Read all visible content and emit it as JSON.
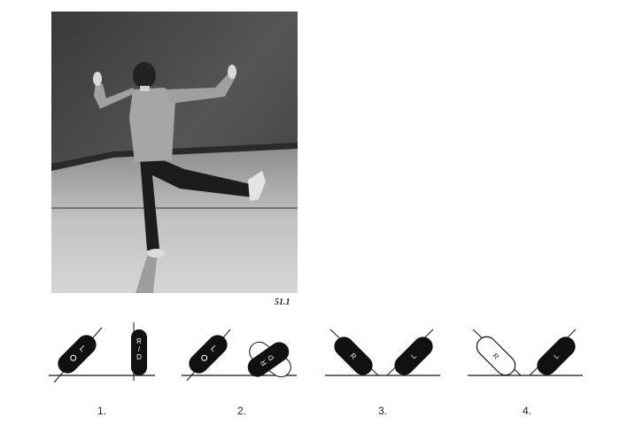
{
  "figure": {
    "label": "51.1"
  },
  "foot_marks": {
    "left": "L",
    "right": "R",
    "separator": "/",
    "suffix_right": "D"
  },
  "steps": [
    {
      "number": "1."
    },
    {
      "number": "2."
    },
    {
      "number": "3."
    },
    {
      "number": "4."
    }
  ],
  "colors": {
    "ink": "#111111",
    "paper": "#ffffff",
    "wall": "#4a4a4a",
    "floor": "#b8b8b8"
  }
}
